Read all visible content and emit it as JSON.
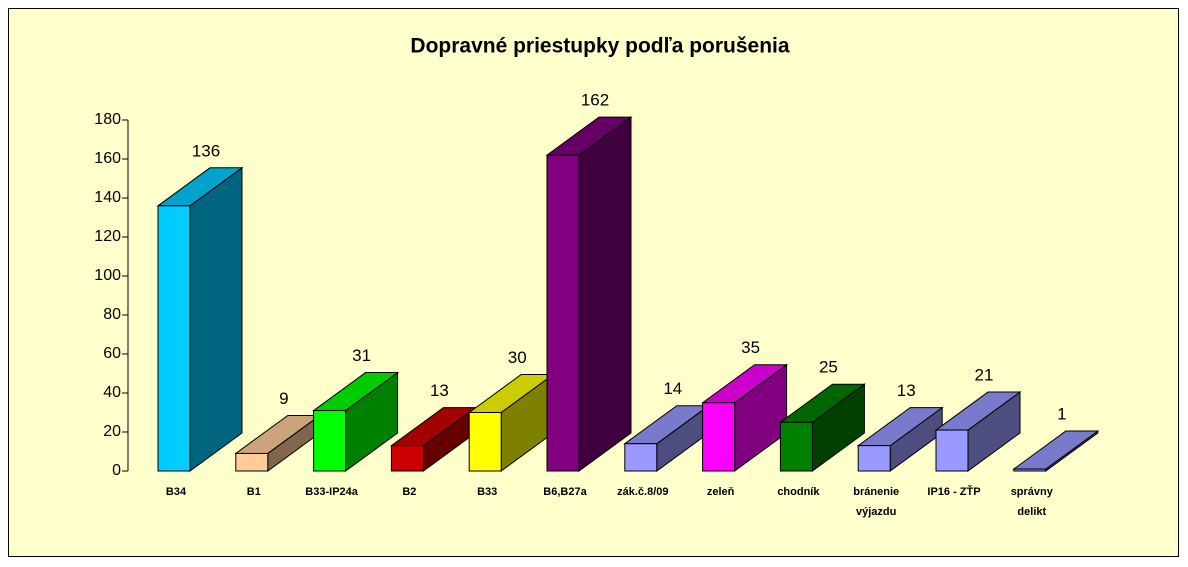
{
  "chart_data": {
    "type": "bar3d",
    "title": "Dopravné priestupky podľa porušenia",
    "categories": [
      "B34",
      "B1",
      "B33-IP24a",
      "B2",
      "B33",
      "B6,B27a",
      "zák.č.8/09",
      "zeleň",
      "chodník",
      "bránenie\nvýjazdu",
      "IP16 - ZŤP",
      "správny\ndelikt"
    ],
    "values": [
      136,
      9,
      31,
      13,
      30,
      162,
      14,
      35,
      25,
      13,
      21,
      1
    ],
    "colors": [
      "#00ccff",
      "#ffcc99",
      "#00ff00",
      "#cc0000",
      "#ffff00",
      "#800080",
      "#9999ff",
      "#ff00ff",
      "#008000",
      "#9999ff",
      "#9999ff",
      "#9999ff"
    ],
    "ylim": [
      0,
      180
    ],
    "yticks": [
      0,
      20,
      40,
      60,
      80,
      100,
      120,
      140,
      160,
      180
    ],
    "grid": false
  }
}
